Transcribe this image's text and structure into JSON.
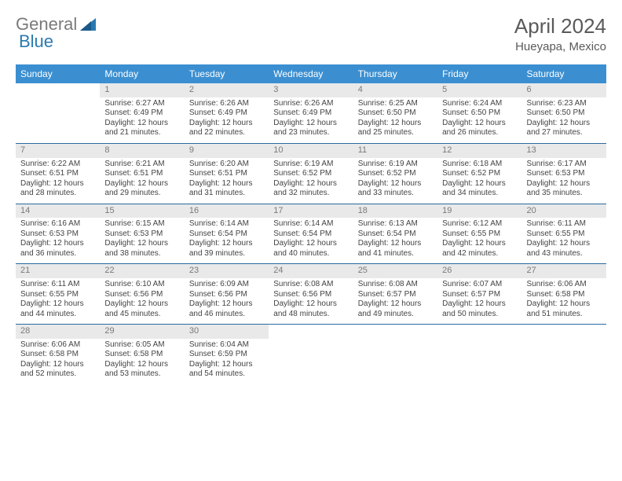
{
  "logo": {
    "text1": "General",
    "text2": "Blue"
  },
  "title": "April 2024",
  "location": "Hueyapa, Mexico",
  "colors": {
    "header_bg": "#3b8fd1",
    "header_text": "#ffffff",
    "daynum_bg": "#e9e9e9",
    "daynum_text": "#7a7a7a",
    "rule": "#2a6aa0",
    "body_text": "#444444",
    "title_text": "#5a5a5a"
  },
  "weekdays": [
    "Sunday",
    "Monday",
    "Tuesday",
    "Wednesday",
    "Thursday",
    "Friday",
    "Saturday"
  ],
  "weeks": [
    [
      null,
      {
        "n": "1",
        "sr": "Sunrise: 6:27 AM",
        "ss": "Sunset: 6:49 PM",
        "dl": "Daylight: 12 hours and 21 minutes."
      },
      {
        "n": "2",
        "sr": "Sunrise: 6:26 AM",
        "ss": "Sunset: 6:49 PM",
        "dl": "Daylight: 12 hours and 22 minutes."
      },
      {
        "n": "3",
        "sr": "Sunrise: 6:26 AM",
        "ss": "Sunset: 6:49 PM",
        "dl": "Daylight: 12 hours and 23 minutes."
      },
      {
        "n": "4",
        "sr": "Sunrise: 6:25 AM",
        "ss": "Sunset: 6:50 PM",
        "dl": "Daylight: 12 hours and 25 minutes."
      },
      {
        "n": "5",
        "sr": "Sunrise: 6:24 AM",
        "ss": "Sunset: 6:50 PM",
        "dl": "Daylight: 12 hours and 26 minutes."
      },
      {
        "n": "6",
        "sr": "Sunrise: 6:23 AM",
        "ss": "Sunset: 6:50 PM",
        "dl": "Daylight: 12 hours and 27 minutes."
      }
    ],
    [
      {
        "n": "7",
        "sr": "Sunrise: 6:22 AM",
        "ss": "Sunset: 6:51 PM",
        "dl": "Daylight: 12 hours and 28 minutes."
      },
      {
        "n": "8",
        "sr": "Sunrise: 6:21 AM",
        "ss": "Sunset: 6:51 PM",
        "dl": "Daylight: 12 hours and 29 minutes."
      },
      {
        "n": "9",
        "sr": "Sunrise: 6:20 AM",
        "ss": "Sunset: 6:51 PM",
        "dl": "Daylight: 12 hours and 31 minutes."
      },
      {
        "n": "10",
        "sr": "Sunrise: 6:19 AM",
        "ss": "Sunset: 6:52 PM",
        "dl": "Daylight: 12 hours and 32 minutes."
      },
      {
        "n": "11",
        "sr": "Sunrise: 6:19 AM",
        "ss": "Sunset: 6:52 PM",
        "dl": "Daylight: 12 hours and 33 minutes."
      },
      {
        "n": "12",
        "sr": "Sunrise: 6:18 AM",
        "ss": "Sunset: 6:52 PM",
        "dl": "Daylight: 12 hours and 34 minutes."
      },
      {
        "n": "13",
        "sr": "Sunrise: 6:17 AM",
        "ss": "Sunset: 6:53 PM",
        "dl": "Daylight: 12 hours and 35 minutes."
      }
    ],
    [
      {
        "n": "14",
        "sr": "Sunrise: 6:16 AM",
        "ss": "Sunset: 6:53 PM",
        "dl": "Daylight: 12 hours and 36 minutes."
      },
      {
        "n": "15",
        "sr": "Sunrise: 6:15 AM",
        "ss": "Sunset: 6:53 PM",
        "dl": "Daylight: 12 hours and 38 minutes."
      },
      {
        "n": "16",
        "sr": "Sunrise: 6:14 AM",
        "ss": "Sunset: 6:54 PM",
        "dl": "Daylight: 12 hours and 39 minutes."
      },
      {
        "n": "17",
        "sr": "Sunrise: 6:14 AM",
        "ss": "Sunset: 6:54 PM",
        "dl": "Daylight: 12 hours and 40 minutes."
      },
      {
        "n": "18",
        "sr": "Sunrise: 6:13 AM",
        "ss": "Sunset: 6:54 PM",
        "dl": "Daylight: 12 hours and 41 minutes."
      },
      {
        "n": "19",
        "sr": "Sunrise: 6:12 AM",
        "ss": "Sunset: 6:55 PM",
        "dl": "Daylight: 12 hours and 42 minutes."
      },
      {
        "n": "20",
        "sr": "Sunrise: 6:11 AM",
        "ss": "Sunset: 6:55 PM",
        "dl": "Daylight: 12 hours and 43 minutes."
      }
    ],
    [
      {
        "n": "21",
        "sr": "Sunrise: 6:11 AM",
        "ss": "Sunset: 6:55 PM",
        "dl": "Daylight: 12 hours and 44 minutes."
      },
      {
        "n": "22",
        "sr": "Sunrise: 6:10 AM",
        "ss": "Sunset: 6:56 PM",
        "dl": "Daylight: 12 hours and 45 minutes."
      },
      {
        "n": "23",
        "sr": "Sunrise: 6:09 AM",
        "ss": "Sunset: 6:56 PM",
        "dl": "Daylight: 12 hours and 46 minutes."
      },
      {
        "n": "24",
        "sr": "Sunrise: 6:08 AM",
        "ss": "Sunset: 6:56 PM",
        "dl": "Daylight: 12 hours and 48 minutes."
      },
      {
        "n": "25",
        "sr": "Sunrise: 6:08 AM",
        "ss": "Sunset: 6:57 PM",
        "dl": "Daylight: 12 hours and 49 minutes."
      },
      {
        "n": "26",
        "sr": "Sunrise: 6:07 AM",
        "ss": "Sunset: 6:57 PM",
        "dl": "Daylight: 12 hours and 50 minutes."
      },
      {
        "n": "27",
        "sr": "Sunrise: 6:06 AM",
        "ss": "Sunset: 6:58 PM",
        "dl": "Daylight: 12 hours and 51 minutes."
      }
    ],
    [
      {
        "n": "28",
        "sr": "Sunrise: 6:06 AM",
        "ss": "Sunset: 6:58 PM",
        "dl": "Daylight: 12 hours and 52 minutes."
      },
      {
        "n": "29",
        "sr": "Sunrise: 6:05 AM",
        "ss": "Sunset: 6:58 PM",
        "dl": "Daylight: 12 hours and 53 minutes."
      },
      {
        "n": "30",
        "sr": "Sunrise: 6:04 AM",
        "ss": "Sunset: 6:59 PM",
        "dl": "Daylight: 12 hours and 54 minutes."
      },
      null,
      null,
      null,
      null
    ]
  ]
}
